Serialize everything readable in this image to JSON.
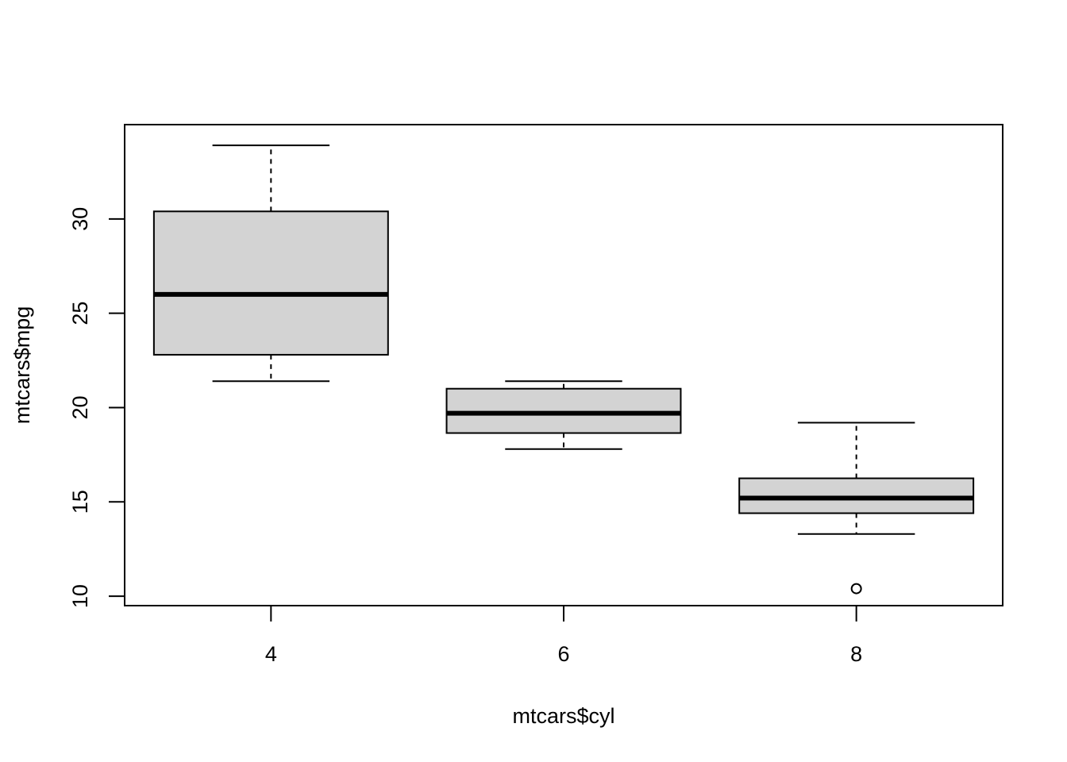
{
  "chart_data": {
    "type": "boxplot",
    "title": "",
    "xlabel": "mtcars$cyl",
    "ylabel": "mtcars$mpg",
    "categories": [
      "4",
      "6",
      "8"
    ],
    "boxes": [
      {
        "category": "4",
        "whisker_low": 21.4,
        "q1": 22.8,
        "median": 26.0,
        "q3": 30.4,
        "whisker_high": 33.9,
        "outliers": []
      },
      {
        "category": "6",
        "whisker_low": 17.8,
        "q1": 18.65,
        "median": 19.7,
        "q3": 21.0,
        "whisker_high": 21.4,
        "outliers": []
      },
      {
        "category": "8",
        "whisker_low": 13.3,
        "q1": 14.4,
        "median": 15.2,
        "q3": 16.25,
        "whisker_high": 19.2,
        "outliers": [
          10.4
        ]
      }
    ],
    "ylim": [
      9.5,
      35.0
    ],
    "yticks": [
      10,
      15,
      20,
      25,
      30
    ],
    "xlim": [
      0.5,
      3.5
    ],
    "grid": false,
    "box_fill": "#d3d3d3",
    "line_color": "#000000"
  }
}
